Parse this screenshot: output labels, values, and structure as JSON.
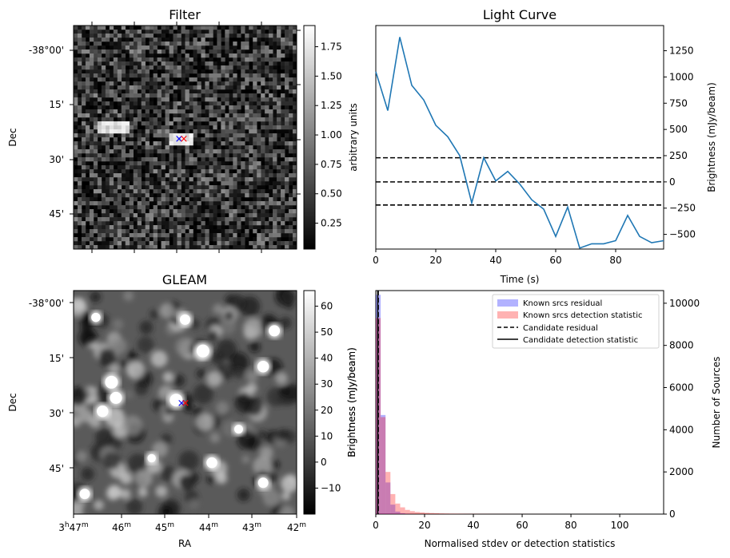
{
  "chart_data": [
    {
      "type": "heatmap",
      "panel": "filter",
      "title": "Filter",
      "xlabel": "",
      "ylabel": "Dec",
      "y_tick_labels": [
        "-38°00'",
        "15'",
        "30'",
        "45'"
      ],
      "colorbar": {
        "label": "arbitrary units",
        "range": [
          0.03,
          1.93
        ],
        "ticks": [
          "0.25",
          "0.50",
          "0.75",
          "1.00",
          "1.25",
          "1.50",
          "1.75"
        ],
        "tick_values": [
          0.25,
          0.5,
          0.75,
          1.0,
          1.25,
          1.5,
          1.75
        ]
      },
      "markers": [
        {
          "symbol": "×",
          "color": "#0000ff"
        },
        {
          "symbol": "×",
          "color": "#ff0000"
        }
      ]
    },
    {
      "type": "line",
      "panel": "light_curve",
      "title": "Light Curve",
      "xlabel": "Time (s)",
      "ylabel": "Brightness (mJy/beam)",
      "xlim": [
        0,
        96
      ],
      "ylim": [
        -640,
        1490
      ],
      "x_ticks": [
        0,
        20,
        40,
        60,
        80
      ],
      "y_ticks": [
        -500,
        -250,
        0,
        250,
        500,
        750,
        1000,
        1250
      ],
      "y_axis_side": "right",
      "series": [
        {
          "color": "#1f77b4",
          "x": [
            0,
            4,
            8,
            12,
            16,
            20,
            24,
            28,
            32,
            36,
            40,
            44,
            48,
            52,
            56,
            60,
            64,
            68,
            72,
            76,
            80,
            84,
            88,
            92,
            96
          ],
          "y": [
            1050,
            680,
            1380,
            920,
            780,
            540,
            430,
            250,
            -200,
            230,
            10,
            100,
            -20,
            -170,
            -260,
            -520,
            -240,
            -630,
            -590,
            -590,
            -560,
            -320,
            -520,
            -580,
            -560
          ]
        }
      ],
      "hlines": [
        {
          "y": 230,
          "style": "dashed",
          "color": "#000000"
        },
        {
          "y": 0,
          "style": "dashed",
          "color": "#000000"
        },
        {
          "y": -220,
          "style": "dashed",
          "color": "#000000"
        }
      ]
    },
    {
      "type": "heatmap",
      "panel": "gleam",
      "title": "GLEAM",
      "xlabel": "RA",
      "ylabel": "Dec",
      "x_tick_labels": [
        {
          "hours": "3",
          "minutes": "47"
        },
        {
          "hours": "",
          "minutes": "46"
        },
        {
          "hours": "",
          "minutes": "45"
        },
        {
          "hours": "",
          "minutes": "44"
        },
        {
          "hours": "",
          "minutes": "43"
        },
        {
          "hours": "",
          "minutes": "42"
        }
      ],
      "y_tick_labels": [
        "-38°00'",
        "15'",
        "30'",
        "45'"
      ],
      "colorbar": {
        "label": "Brightness (mJy/beam)",
        "range": [
          -20,
          66
        ],
        "ticks": [
          "−10",
          "0",
          "10",
          "20",
          "30",
          "40",
          "50",
          "60"
        ],
        "tick_values": [
          -10,
          0,
          10,
          20,
          30,
          40,
          50,
          60
        ]
      },
      "sources": [
        {
          "name": "s1",
          "ra_frac": 0.17,
          "dec_frac": 0.41,
          "bright": 1.0
        },
        {
          "name": "s2",
          "ra_frac": 0.19,
          "dec_frac": 0.48,
          "bright": 0.9
        },
        {
          "name": "s3",
          "ra_frac": 0.13,
          "dec_frac": 0.54,
          "bright": 0.85
        },
        {
          "name": "s4",
          "ra_frac": 0.46,
          "dec_frac": 0.49,
          "bright": 1.0
        },
        {
          "name": "s5",
          "ra_frac": 0.58,
          "dec_frac": 0.27,
          "bright": 1.0
        },
        {
          "name": "s6",
          "ra_frac": 0.85,
          "dec_frac": 0.34,
          "bright": 0.85
        },
        {
          "name": "s7",
          "ra_frac": 0.9,
          "dec_frac": 0.18,
          "bright": 0.8
        },
        {
          "name": "s8",
          "ra_frac": 0.5,
          "dec_frac": 0.13,
          "bright": 0.7
        },
        {
          "name": "s9",
          "ra_frac": 0.62,
          "dec_frac": 0.77,
          "bright": 0.75
        },
        {
          "name": "s10",
          "ra_frac": 0.85,
          "dec_frac": 0.86,
          "bright": 0.7
        },
        {
          "name": "s11",
          "ra_frac": 0.05,
          "dec_frac": 0.91,
          "bright": 0.7
        },
        {
          "name": "s12",
          "ra_frac": 0.1,
          "dec_frac": 0.12,
          "bright": 0.55
        },
        {
          "name": "s13",
          "ra_frac": 0.74,
          "dec_frac": 0.62,
          "bright": 0.5
        },
        {
          "name": "s14",
          "ra_frac": 0.35,
          "dec_frac": 0.75,
          "bright": 0.45
        }
      ],
      "markers": [
        {
          "symbol": "×",
          "color": "#0000ff"
        },
        {
          "symbol": "×",
          "color": "#ff0000"
        }
      ]
    },
    {
      "type": "bar",
      "panel": "histogram",
      "title": "",
      "xlabel": "Normalised stdev or detection statistics",
      "ylabel_left": "Brightness (mJy/beam)",
      "ylabel_right": "Number of Sources",
      "xlim": [
        0,
        118
      ],
      "ylim": [
        0,
        10600
      ],
      "x_ticks": [
        0,
        20,
        40,
        60,
        80,
        100
      ],
      "y_ticks": [
        0,
        2000,
        4000,
        6000,
        8000,
        10000
      ],
      "bin_width": 2,
      "series": [
        {
          "name": "Known srcs residual",
          "color": "#0000ff",
          "opacity": 0.3,
          "counts": [
            10400,
            4700,
            1500,
            450,
            120,
            40,
            15,
            5
          ]
        },
        {
          "name": "Known srcs detection statistic",
          "color": "#ff0000",
          "opacity": 0.3,
          "counts": [
            9300,
            4600,
            2000,
            950,
            500,
            320,
            200,
            140,
            100,
            80,
            60,
            50,
            40,
            30,
            25,
            20,
            18,
            15,
            12,
            10,
            9,
            8,
            7,
            6,
            5,
            5,
            4,
            4,
            3,
            3,
            3,
            2,
            2,
            2,
            2,
            2,
            1,
            1,
            1,
            1,
            1,
            1,
            1,
            1,
            1,
            1,
            1,
            1,
            1,
            1,
            1,
            1,
            1,
            1,
            1,
            1
          ]
        }
      ],
      "vlines": [
        {
          "name": "Candidate residual",
          "x": 1.0,
          "style": "dashed",
          "color": "#000000"
        },
        {
          "name": "Candidate detection statistic",
          "x": 0.8,
          "style": "solid",
          "color": "#000000"
        }
      ],
      "legend": "top-right"
    }
  ]
}
